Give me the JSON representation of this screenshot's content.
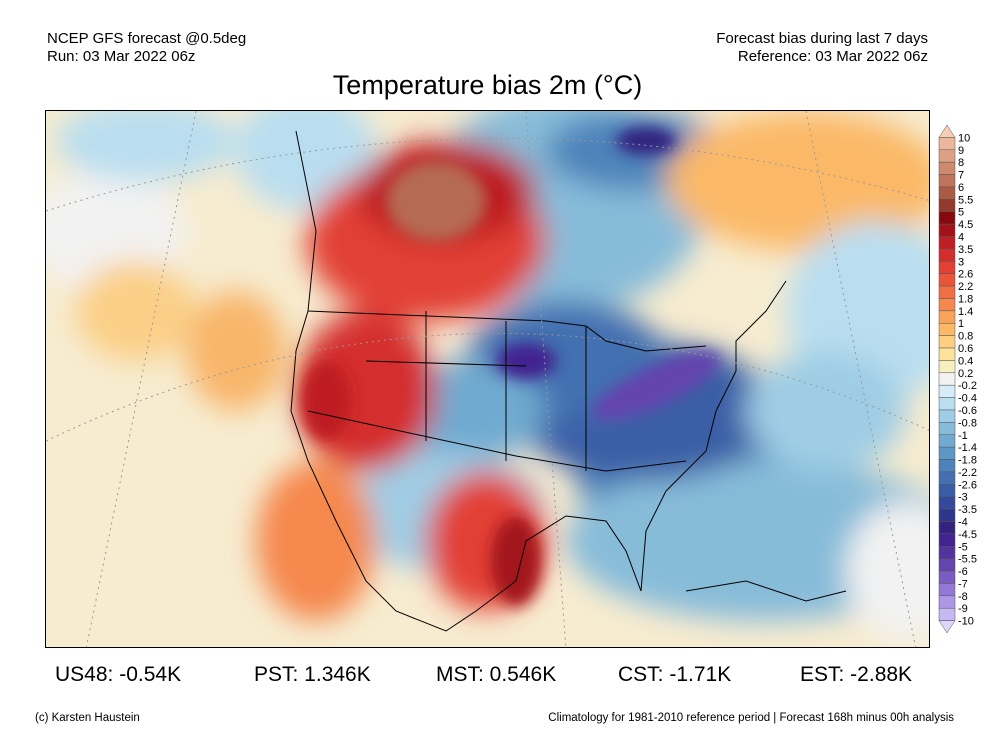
{
  "header": {
    "left_line1": "NCEP GFS forecast @0.5deg",
    "left_line2": "Run: 03 Mar 2022 06z",
    "right_line1": "Forecast bias during last 7 days",
    "right_line2": "Reference: 03 Mar 2022 06z",
    "title": "Temperature bias 2m (°C)"
  },
  "colorbar": {
    "labels": [
      "10",
      "9",
      "8",
      "7",
      "6",
      "5.5",
      "5",
      "4.5",
      "4",
      "3.5",
      "3",
      "2.6",
      "2.2",
      "1.8",
      "1.4",
      "1",
      "0.8",
      "0.6",
      "0.4",
      "0.2",
      "-0.2",
      "-0.4",
      "-0.6",
      "-0.8",
      "-1",
      "-1.4",
      "-1.8",
      "-2.2",
      "-2.6",
      "-3",
      "-3.5",
      "-4",
      "-4.5",
      "-5",
      "-5.5",
      "-6",
      "-7",
      "-8",
      "-9",
      "-10"
    ],
    "colors": [
      "#f7cdb5",
      "#ebb69b",
      "#dea084",
      "#cf8a6e",
      "#bf735a",
      "#ab5a44",
      "#943a2d",
      "#86090f",
      "#a3121a",
      "#be1e24",
      "#d42d2d",
      "#e23f35",
      "#ea553a",
      "#f06e43",
      "#f5884e",
      "#f8a25a",
      "#fbb968",
      "#fdcf80",
      "#fde29c",
      "#f8efbe",
      "#f2f2f2",
      "#d6ecf8",
      "#b9def0",
      "#9fcde5",
      "#87bcd9",
      "#70aad0",
      "#5d97c6",
      "#4d83ba",
      "#4270b0",
      "#3a5ea6",
      "#33499a",
      "#2e368c",
      "#33237f",
      "#42238f",
      "#53349e",
      "#6445ae",
      "#7a5dc2",
      "#9478d6",
      "#ad97e6",
      "#c6b8f2",
      "#ddd5fa"
    ]
  },
  "stats": {
    "us48": "US48: -0.54K",
    "pst": "PST: 1.346K",
    "mst": "MST: 0.546K",
    "cst": "CST: -1.71K",
    "est": "EST: -2.88K"
  },
  "footer": {
    "credit": "(c) Karsten Haustein",
    "note": "Climatology for 1981-2010 reference period | Forecast 168h minus 00h analysis"
  }
}
